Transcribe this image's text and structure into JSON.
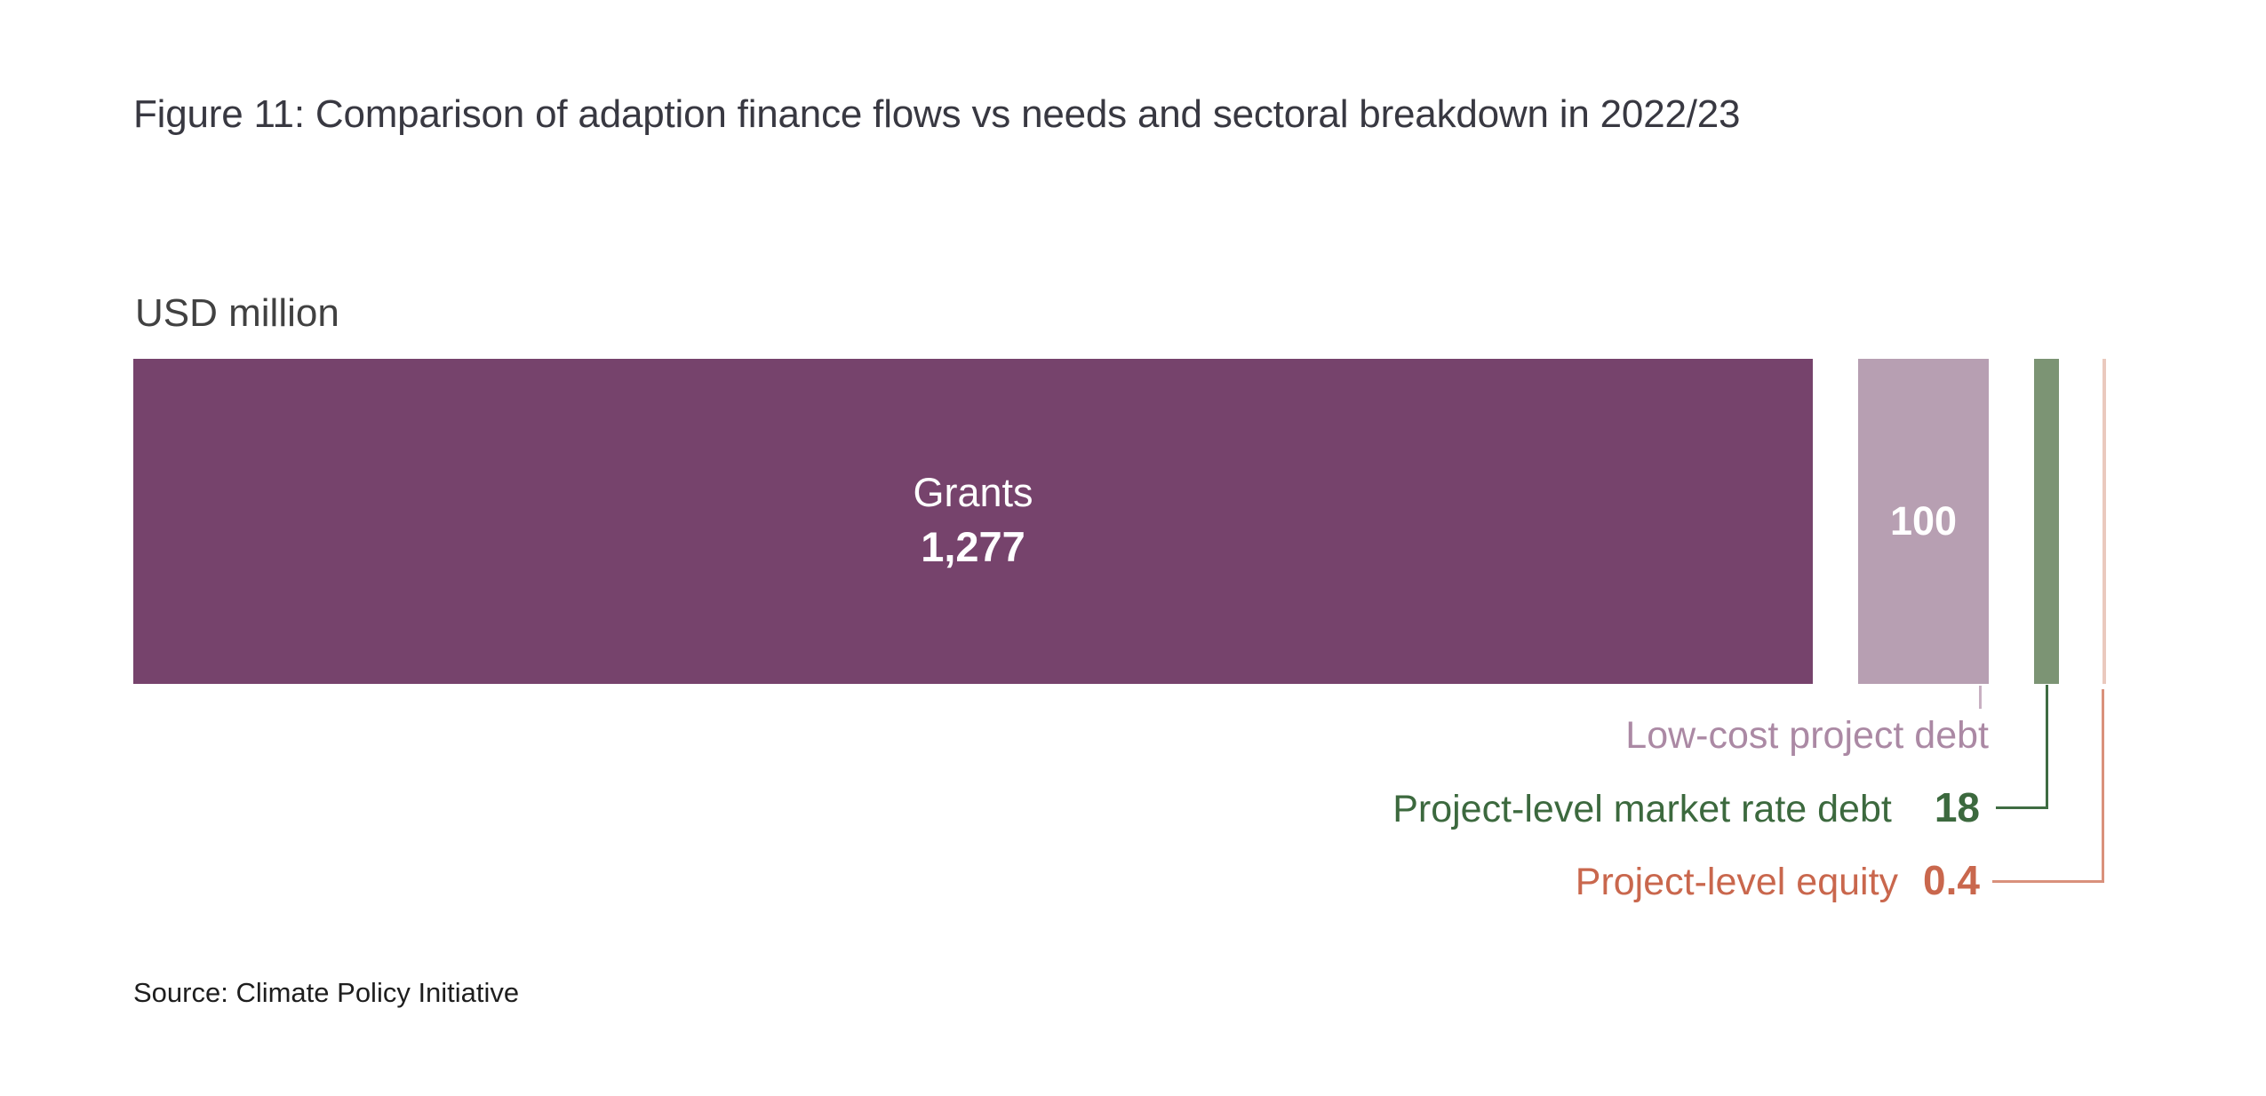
{
  "figure": {
    "title": "Figure 11: Comparison of adaption finance flows vs needs and sectoral breakdown in 2022/23",
    "unit_label": "USD million",
    "source": "Source: Climate Policy Initiative"
  },
  "chart_data": {
    "type": "bar",
    "subtype": "horizontal-stacked-single-bar",
    "title": "Figure 11: Comparison of adaption finance flows vs needs and sectoral breakdown in 2022/23",
    "unit": "USD million",
    "xlabel": "",
    "ylabel": "USD million",
    "grid": false,
    "legend_position": "none",
    "axis_range": [
      0,
      1395.4
    ],
    "categories": [
      "Grants",
      "Low-cost project debt",
      "Project-level market rate debt",
      "Project-level equity"
    ],
    "values": [
      1277,
      100,
      18,
      0.4
    ],
    "display_values": [
      "1,277",
      "100",
      "18",
      "0.4"
    ],
    "segment_colors": [
      "#76436c",
      "#b79fb2",
      "#7c9474",
      "#eac9be"
    ],
    "label_colors": [
      "#ffffff",
      "#ffffff",
      "#3c693e",
      "#c9674d"
    ],
    "callout_line_colors": [
      "none",
      "#c8b0c2",
      "#3f6c42",
      "#d9917c"
    ],
    "value_label_placement": [
      "inside",
      "inside",
      "callout-below",
      "callout-below"
    ],
    "source": "Source: Climate Policy Initiative"
  }
}
